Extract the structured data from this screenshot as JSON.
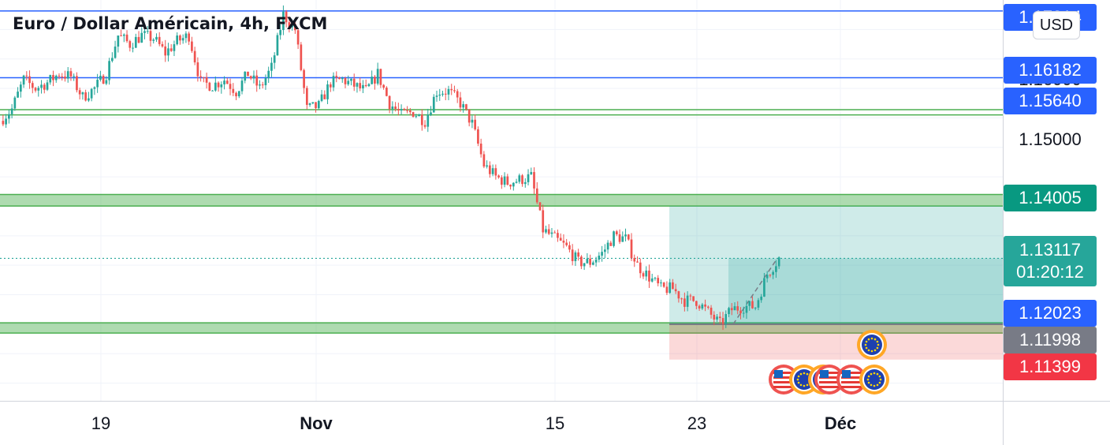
{
  "header": {
    "title": "Euro / Dollar Américain, 4h, FXCM"
  },
  "currency_button": {
    "label": "USD"
  },
  "colors": {
    "up": "#26a69a",
    "down": "#ef5350",
    "blue_line": "#2962ff",
    "zone_green": "#4caf50",
    "profit": "#26a69a",
    "loss": "#ef5350"
  },
  "price_badges": [
    {
      "label": "1.17314",
      "color": "#2962ff"
    },
    {
      "label": "1.16182",
      "color": "#2962ff"
    },
    {
      "label": "1.15640",
      "color": "#2962ff"
    },
    {
      "label": "1.14005",
      "color": "#089981"
    },
    {
      "label": "1.13117",
      "sub": "01:20:12",
      "color": "#26a69a"
    },
    {
      "label": "1.12023",
      "color": "#2962ff"
    },
    {
      "label": "1.11998",
      "color": "#787b86"
    },
    {
      "label": "1.11399",
      "color": "#f23645"
    }
  ],
  "axis_price_labels": [
    "1.16000",
    "1.15000"
  ],
  "x_labels": [
    {
      "label": "19",
      "bold": false
    },
    {
      "label": "Nov",
      "bold": true
    },
    {
      "label": "15",
      "bold": false
    },
    {
      "label": "23",
      "bold": false
    },
    {
      "label": "Déc",
      "bold": true
    }
  ],
  "chart_data": {
    "type": "candlestick",
    "title": "Euro / Dollar Américain, 4h, FXCM",
    "ylim": [
      1.107,
      1.175
    ],
    "horizontal_lines": [
      {
        "price": 1.17314,
        "style": "blue"
      },
      {
        "price": 1.16182,
        "style": "blue"
      },
      {
        "price": 1.1564,
        "style": "green"
      },
      {
        "price": 1.1555,
        "style": "green"
      }
    ],
    "zones": [
      {
        "from": 1.14005,
        "to": 1.142
      },
      {
        "from": 1.1185,
        "to": 1.12023
      }
    ],
    "position": {
      "entry": 1.11998,
      "target": 1.14005,
      "stop": 1.11399,
      "current": 1.13117,
      "countdown": "01:20:12"
    },
    "close_path": [
      1.1545,
      1.1565,
      1.1615,
      1.16,
      1.161,
      1.1625,
      1.162,
      1.1585,
      1.16,
      1.1625,
      1.169,
      1.1675,
      1.169,
      1.1685,
      1.166,
      1.168,
      1.169,
      1.161,
      1.1605,
      1.1615,
      1.1595,
      1.1625,
      1.16,
      1.1635,
      1.1725,
      1.17,
      1.1565,
      1.157,
      1.161,
      1.1615,
      1.1605,
      1.1595,
      1.1625,
      1.1575,
      1.1555,
      1.156,
      1.1545,
      1.1595,
      1.1595,
      1.1575,
      1.154,
      1.147,
      1.145,
      1.144,
      1.1445,
      1.145,
      1.136,
      1.1345,
      1.133,
      1.1305,
      1.1305,
      1.132,
      1.135,
      1.1345,
      1.13,
      1.128,
      1.126,
      1.126,
      1.124,
      1.124,
      1.122,
      1.12,
      1.1225,
      1.123,
      1.123,
      1.1285,
      1.1312
    ],
    "events": [
      "eu",
      "us",
      "eu",
      "eu",
      "us",
      "us",
      "eu"
    ]
  }
}
